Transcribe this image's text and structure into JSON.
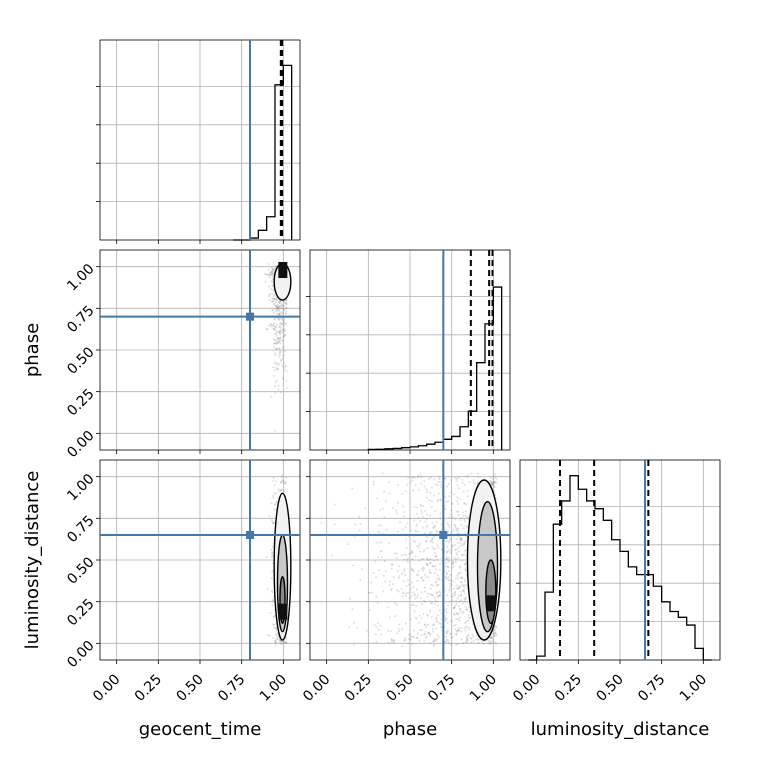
{
  "chart_data": {
    "type": "corner",
    "parameters": [
      "geocent_time",
      "phase",
      "luminosity_distance"
    ],
    "axis_range": [
      -0.1,
      1.1
    ],
    "ticks": [
      0.0,
      0.25,
      0.5,
      0.75,
      1.0
    ],
    "tick_labels": [
      "0.00",
      "0.25",
      "0.50",
      "0.75",
      "1.00"
    ],
    "grid": true,
    "colors": {
      "truth": "#4477aa",
      "histogram": "#000000",
      "points": "#808080",
      "frame": "#000000"
    },
    "truths": {
      "geocent_time": 0.8,
      "phase": 0.7,
      "luminosity_distance": 0.65
    },
    "histograms": [
      {
        "parameter": "geocent_time",
        "bin_edges": [
          0.7,
          0.75,
          0.8,
          0.85,
          0.9,
          0.95,
          1.0,
          1.05
        ],
        "counts": [
          0,
          0,
          0.01,
          0.05,
          0.12,
          0.8,
          0.9
        ],
        "quantiles": [
          0.985,
          0.99,
          0.993
        ]
      },
      {
        "parameter": "phase",
        "bin_edges": [
          0.25,
          0.3,
          0.35,
          0.4,
          0.45,
          0.5,
          0.55,
          0.6,
          0.65,
          0.7,
          0.75,
          0.8,
          0.85,
          0.9,
          0.95,
          1.0,
          1.05
        ],
        "counts": [
          0.003,
          0.004,
          0.006,
          0.008,
          0.012,
          0.016,
          0.022,
          0.03,
          0.04,
          0.055,
          0.07,
          0.12,
          0.2,
          0.45,
          0.65,
          0.84
        ],
        "quantiles": [
          0.865,
          0.975,
          0.995
        ]
      },
      {
        "parameter": "luminosity_distance",
        "bin_edges": [
          -0.05,
          0.0,
          0.05,
          0.1,
          0.15,
          0.2,
          0.25,
          0.3,
          0.35,
          0.4,
          0.45,
          0.5,
          0.55,
          0.6,
          0.65,
          0.7,
          0.75,
          0.8,
          0.85,
          0.9,
          0.95,
          1.0,
          1.05
        ],
        "counts": [
          0.0,
          0.02,
          0.35,
          0.7,
          0.82,
          0.95,
          0.88,
          0.82,
          0.78,
          0.72,
          0.62,
          0.56,
          0.48,
          0.44,
          0.44,
          0.38,
          0.3,
          0.25,
          0.22,
          0.18,
          0.06,
          0.0
        ],
        "quantiles": [
          0.14,
          0.345,
          0.67
        ]
      }
    ],
    "scatter_panels": [
      {
        "x": "geocent_time",
        "y": "phase",
        "point_cloud": {
          "x_center": 0.98,
          "x_spread": 0.03,
          "y_center": 0.85,
          "y_spread": 0.25
        },
        "contours": [
          {
            "level": "outer",
            "x_center": 1.0,
            "x_halfwidth": 0.05,
            "y_min": 0.8,
            "y_max": 1.02
          },
          {
            "level": "inner",
            "x_center": 1.0,
            "x_halfwidth": 0.02,
            "y_min": 0.94,
            "y_max": 1.02
          }
        ]
      },
      {
        "x": "geocent_time",
        "y": "luminosity_distance",
        "point_cloud": {
          "x_center": 0.99,
          "x_spread": 0.03,
          "y_center": 0.4,
          "y_spread": 0.3
        },
        "contours": [
          {
            "level": "outer",
            "x_center": 1.0,
            "x_halfwidth": 0.05,
            "y_min": 0.02,
            "y_max": 0.9
          },
          {
            "level": "middle",
            "x_center": 1.0,
            "x_halfwidth": 0.03,
            "y_min": 0.07,
            "y_max": 0.65
          },
          {
            "level": "inner",
            "x_center": 1.0,
            "x_halfwidth": 0.015,
            "y_min": 0.12,
            "y_max": 0.4
          }
        ]
      },
      {
        "x": "phase",
        "y": "luminosity_distance",
        "point_cloud": {
          "x_center": 0.8,
          "x_spread": 0.25,
          "y_center": 0.45,
          "y_spread": 0.3
        },
        "contours": [
          {
            "level": "outer",
            "x_center": 0.95,
            "x_halfwidth": 0.1,
            "y_min": 0.02,
            "y_max": 0.98
          },
          {
            "level": "middle",
            "x_center": 0.97,
            "x_halfwidth": 0.06,
            "y_min": 0.07,
            "y_max": 0.85
          },
          {
            "level": "inner",
            "x_center": 0.99,
            "x_halfwidth": 0.03,
            "y_min": 0.12,
            "y_max": 0.5
          }
        ]
      }
    ]
  }
}
